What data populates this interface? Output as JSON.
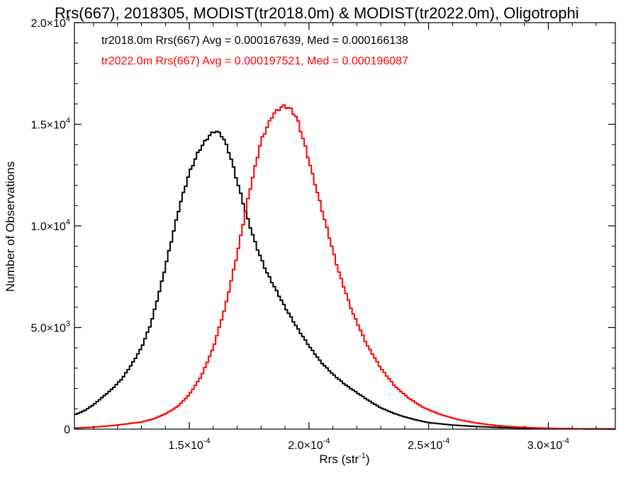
{
  "chart_data": {
    "type": "line",
    "step": true,
    "title": "Rrs(667), 2018305, MODIST(tr2018.0m) & MODIST(tr2022.0m), Oligotrophi",
    "xlabel": "Rrs (str",
    "xlabel_sup": "-1",
    "xlabel_close": ")",
    "ylabel": "Number of Observations",
    "xlim": [
      0.000102,
      0.000328
    ],
    "ylim": [
      0,
      20000
    ],
    "x_ticks": [
      {
        "mant": "1.5×10",
        "exp": "-4",
        "value": 0.00015
      },
      {
        "mant": "2.0×10",
        "exp": "-4",
        "value": 0.0002
      },
      {
        "mant": "2.5×10",
        "exp": "-4",
        "value": 0.00025
      },
      {
        "mant": "3.0×10",
        "exp": "-4",
        "value": 0.0003
      }
    ],
    "y_ticks": [
      {
        "mant": "0",
        "exp": "",
        "value": 0
      },
      {
        "mant": "5.0×10",
        "exp": "3",
        "value": 5000
      },
      {
        "mant": "1.0×10",
        "exp": "4",
        "value": 10000
      },
      {
        "mant": "1.5×10",
        "exp": "4",
        "value": 15000
      },
      {
        "mant": "2.0×10",
        "exp": "4",
        "value": 20000
      }
    ],
    "annotations": [
      {
        "text": "tr2018.0m Rrs(667) Avg = 0.000167639, Med = 0.000166138",
        "color": "#000000"
      },
      {
        "text": "tr2022.0m Rrs(667) Avg = 0.000197521, Med = 0.000196087",
        "color": "#ff0000"
      }
    ],
    "series": [
      {
        "color": "#000000",
        "x": [
          0.000102,
          0.000106,
          0.00011,
          0.000114,
          0.000118,
          0.000122,
          0.000126,
          0.00013,
          0.000134,
          0.000138,
          0.000142,
          0.000146,
          0.00015,
          0.000154,
          0.000158,
          0.000161,
          0.000164,
          0.000167,
          0.00017,
          0.000174,
          0.000178,
          0.000182,
          0.000186,
          0.00019,
          0.000195,
          0.0002,
          0.000205,
          0.00021,
          0.000215,
          0.00022,
          0.000225,
          0.00023,
          0.000235,
          0.00024,
          0.000245,
          0.00025,
          0.00026,
          0.00027,
          0.00028,
          0.00029,
          0.0003,
          0.000315,
          0.000328
        ],
        "y": [
          700,
          900,
          1200,
          1600,
          2000,
          2500,
          3200,
          4000,
          5200,
          7000,
          9000,
          11000,
          12600,
          13700,
          14400,
          14700,
          14400,
          13500,
          12200,
          10500,
          9000,
          7800,
          6900,
          6000,
          5000,
          4100,
          3300,
          2700,
          2200,
          1800,
          1400,
          1050,
          800,
          600,
          450,
          320,
          200,
          130,
          80,
          50,
          30,
          15,
          10
        ]
      },
      {
        "color": "#ff0000",
        "x": [
          0.000102,
          0.00011,
          0.00012,
          0.00013,
          0.000135,
          0.00014,
          0.000145,
          0.00015,
          0.000155,
          0.00016,
          0.000165,
          0.00017,
          0.000175,
          0.00018,
          0.000185,
          0.000189,
          0.000192,
          0.000195,
          0.000198,
          0.000202,
          0.000207,
          0.000212,
          0.000218,
          0.000224,
          0.00023,
          0.000236,
          0.000242,
          0.000248,
          0.000255,
          0.000262,
          0.00027,
          0.000278,
          0.000286,
          0.000295,
          0.000305,
          0.000315,
          0.000328
        ],
        "y": [
          50,
          100,
          200,
          350,
          500,
          750,
          1100,
          1700,
          2600,
          4000,
          6000,
          8600,
          11600,
          14200,
          15500,
          15900,
          15800,
          15300,
          14100,
          12300,
          10100,
          7900,
          5800,
          4200,
          3000,
          2100,
          1500,
          1050,
          720,
          480,
          300,
          180,
          110,
          60,
          30,
          15,
          8
        ]
      }
    ]
  }
}
